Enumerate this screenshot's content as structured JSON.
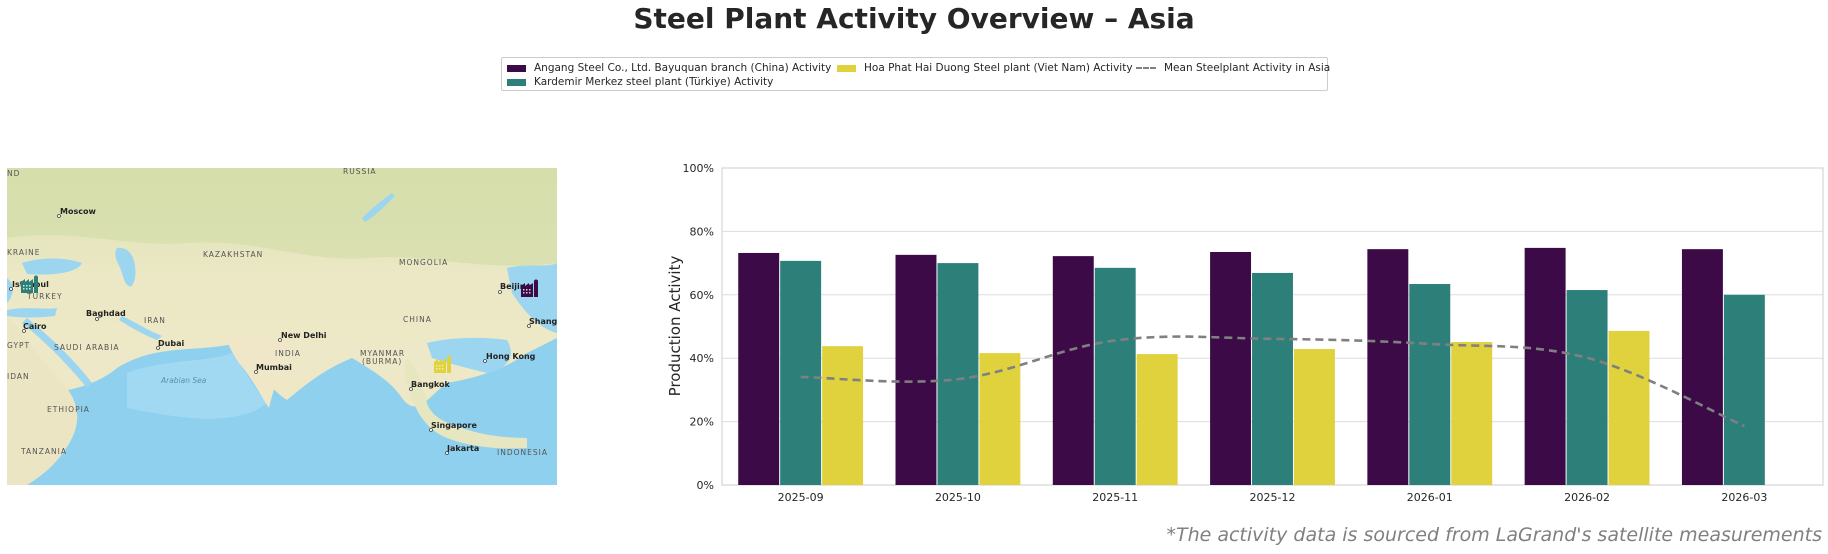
{
  "title": "Steel Plant Activity Overview – Asia",
  "caption": "*The activity data is sourced from LaGrand's satellite measurements",
  "legend": {
    "items": [
      {
        "label": "Angang Steel Co., Ltd. Bayuquan branch (China) Activity",
        "color": "#3b0a47",
        "kind": "bar"
      },
      {
        "label": "Kardemir Merkez steel plant (Türkiye) Activity",
        "color": "#2d7f7a",
        "kind": "bar"
      },
      {
        "label": "Hoa Phat Hai Duong Steel plant (Viet Nam) Activity",
        "color": "#e0d23c",
        "kind": "bar"
      },
      {
        "label": "Mean Steelplant Activity in Asia",
        "color": "#808080",
        "kind": "dashed-line"
      }
    ]
  },
  "map": {
    "labels": {
      "russia": "RUSSIA",
      "moscow": "Moscow",
      "ukraine": "KRAINE",
      "kazakhstan": "KAZAKHSTAN",
      "mongolia": "MONGOLIA",
      "istanbul": "Istanbul",
      "turkey": "TURKEY",
      "beijing": "Beijing",
      "shanghai": "Shang",
      "baghdad": "Baghdad",
      "iran": "IRAN",
      "china": "CHINA",
      "cairo": "Cairo",
      "new_delhi": "New Delhi",
      "egypt": "GYPT",
      "saudi_arabia": "SAUDI ARABIA",
      "dubai": "Dubai",
      "india": "INDIA",
      "myanmar": "MYANMAR",
      "burma": "(BURMA)",
      "hong_kong": "Hong Kong",
      "sudan": "IDAN",
      "arabian_sea": "Arabian Sea",
      "mumbai": "Mumbai",
      "bangkok": "Bangkok",
      "ethiopia": "ETHIOPIA",
      "singapore": "Singapore",
      "tanzania": "TANZANIA",
      "jakarta": "Jakarta",
      "indonesia": "INDONESIA",
      "nd": "ND"
    },
    "markers": [
      {
        "plant": "Kardemir Merkez steel plant (Türkiye)",
        "icon": "factory-icon",
        "color": "#2d7f7a"
      },
      {
        "plant": "Angang Steel Co., Ltd. Bayuquan branch (China)",
        "icon": "factory-icon",
        "color": "#3b0a47"
      },
      {
        "plant": "Hoa Phat Hai Duong Steel plant (Viet Nam)",
        "icon": "factory-icon",
        "color": "#e0d23c"
      }
    ]
  },
  "chart_data": {
    "type": "bar",
    "title": "",
    "xlabel": "",
    "ylabel": "Production Activity",
    "ylim": [
      0,
      100
    ],
    "yticks": [
      0,
      20,
      40,
      60,
      80,
      100
    ],
    "ytick_labels": [
      "0%",
      "20%",
      "40%",
      "60%",
      "80%",
      "100%"
    ],
    "grid": true,
    "legend_position": "top-center",
    "categories": [
      "2025-09",
      "2025-10",
      "2025-11",
      "2025-12",
      "2026-01",
      "2026-02",
      "2026-03"
    ],
    "series": [
      {
        "name": "Angang Steel Co., Ltd. Bayuquan branch (China) Activity",
        "type": "bar",
        "color": "#3b0a47",
        "values": [
          73.2,
          72.6,
          72.2,
          73.5,
          74.4,
          74.8,
          74.4
        ]
      },
      {
        "name": "Kardemir Merkez steel plant (Türkiye) Activity",
        "type": "bar",
        "color": "#2d7f7a",
        "values": [
          70.7,
          70.0,
          68.5,
          66.9,
          63.4,
          61.5,
          60.0
        ]
      },
      {
        "name": "Hoa Phat Hai Duong Steel plant (Viet Nam) Activity",
        "type": "bar",
        "color": "#e0d23c",
        "values": [
          43.8,
          41.6,
          41.3,
          42.9,
          45.1,
          48.6,
          null
        ]
      },
      {
        "name": "Mean Steelplant Activity in Asia",
        "type": "line",
        "style": "dashed",
        "color": "#808080",
        "values": [
          34.1,
          33.4,
          45.6,
          46.1,
          44.5,
          40.1,
          18.6
        ]
      }
    ]
  }
}
